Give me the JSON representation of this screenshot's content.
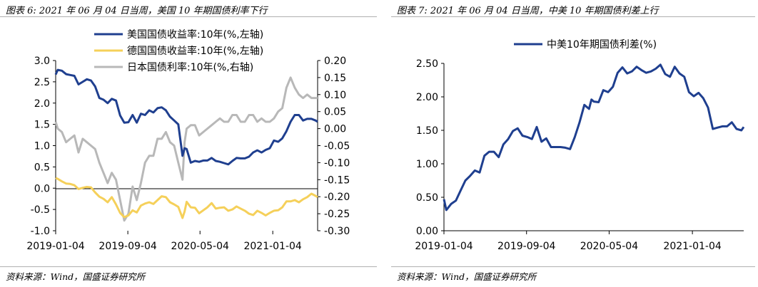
{
  "colors": {
    "us": "#1f3f8f",
    "de": "#f5d05a",
    "jp": "#b8b8b8",
    "spread": "#1f3f8f",
    "axis": "#000000",
    "rule": "#b0b0b0"
  },
  "left": {
    "title": "图表 6:  2021 年 06 月 04 日当周，美国 10 年期国债利率下行",
    "source": "资料来源：Wind，国盛证券研究所",
    "chart_data": {
      "type": "line",
      "x_ticks": [
        "2019-01-04",
        "2019-09-04",
        "2020-05-04",
        "2021-01-04"
      ],
      "y_left": {
        "ticks": [
          "3.0",
          "2.5",
          "2.0",
          "1.5",
          "1.0",
          "0.5",
          "0.0",
          "-0.5",
          "-1.0"
        ],
        "range": [
          -1.0,
          3.0
        ]
      },
      "y_right": {
        "ticks": [
          "0.20",
          "0.15",
          "0.10",
          "0.05",
          "0.00",
          "-0.05",
          "-0.10",
          "-0.15",
          "-0.20",
          "-0.25",
          "-0.30"
        ],
        "range": [
          -0.3,
          0.2
        ]
      },
      "legend_placement": "top-center",
      "series": [
        {
          "name": "美国国债收益率:10年(%,左轴)",
          "axis": "left",
          "x": [
            "2019-01-04",
            "2019-01-11",
            "2019-01-25",
            "2019-02-08",
            "2019-02-22",
            "2019-03-08",
            "2019-03-22",
            "2019-04-05",
            "2019-04-19",
            "2019-05-03",
            "2019-05-17",
            "2019-05-31",
            "2019-06-14",
            "2019-06-28",
            "2019-07-12",
            "2019-07-26",
            "2019-08-09",
            "2019-08-23",
            "2019-09-06",
            "2019-09-20",
            "2019-10-04",
            "2019-10-18",
            "2019-11-01",
            "2019-11-15",
            "2019-11-29",
            "2019-12-13",
            "2019-12-27",
            "2020-01-10",
            "2020-01-24",
            "2020-02-07",
            "2020-02-21",
            "2020-03-06",
            "2020-03-13",
            "2020-03-20",
            "2020-04-03",
            "2020-04-17",
            "2020-05-01",
            "2020-05-15",
            "2020-05-29",
            "2020-06-12",
            "2020-06-26",
            "2020-07-10",
            "2020-07-24",
            "2020-08-07",
            "2020-08-21",
            "2020-09-04",
            "2020-09-18",
            "2020-10-02",
            "2020-10-16",
            "2020-10-30",
            "2020-11-13",
            "2020-11-27",
            "2020-12-11",
            "2020-12-25",
            "2021-01-08",
            "2021-01-22",
            "2021-02-05",
            "2021-02-19",
            "2021-03-05",
            "2021-03-19",
            "2021-04-02",
            "2021-04-16",
            "2021-04-30",
            "2021-05-14",
            "2021-05-28",
            "2021-06-04"
          ],
          "y": [
            2.67,
            2.78,
            2.76,
            2.68,
            2.66,
            2.64,
            2.44,
            2.5,
            2.56,
            2.53,
            2.39,
            2.12,
            2.08,
            2.0,
            2.1,
            2.06,
            1.71,
            1.54,
            1.55,
            1.72,
            1.54,
            1.75,
            1.72,
            1.83,
            1.78,
            1.88,
            1.9,
            1.83,
            1.68,
            1.59,
            1.5,
            0.76,
            0.94,
            0.92,
            0.6,
            0.64,
            0.62,
            0.65,
            0.65,
            0.71,
            0.64,
            0.62,
            0.59,
            0.56,
            0.64,
            0.71,
            0.7,
            0.7,
            0.74,
            0.84,
            0.89,
            0.84,
            0.9,
            0.94,
            1.12,
            1.09,
            1.17,
            1.34,
            1.56,
            1.72,
            1.72,
            1.59,
            1.63,
            1.63,
            1.59,
            1.56
          ]
        },
        {
          "name": "德国国债收益率:10年(%,左轴)",
          "axis": "left",
          "x": [
            "2019-01-04",
            "2019-01-11",
            "2019-01-25",
            "2019-02-08",
            "2019-02-22",
            "2019-03-08",
            "2019-03-22",
            "2019-04-05",
            "2019-04-19",
            "2019-05-03",
            "2019-05-17",
            "2019-05-31",
            "2019-06-14",
            "2019-06-28",
            "2019-07-12",
            "2019-07-26",
            "2019-08-09",
            "2019-08-23",
            "2019-09-06",
            "2019-09-20",
            "2019-10-04",
            "2019-10-18",
            "2019-11-01",
            "2019-11-15",
            "2019-11-29",
            "2019-12-13",
            "2019-12-27",
            "2020-01-10",
            "2020-01-24",
            "2020-02-07",
            "2020-02-21",
            "2020-03-06",
            "2020-03-13",
            "2020-03-20",
            "2020-04-03",
            "2020-04-17",
            "2020-05-01",
            "2020-05-15",
            "2020-05-29",
            "2020-06-12",
            "2020-06-26",
            "2020-07-10",
            "2020-07-24",
            "2020-08-07",
            "2020-08-21",
            "2020-09-04",
            "2020-09-18",
            "2020-10-02",
            "2020-10-16",
            "2020-10-30",
            "2020-11-13",
            "2020-11-27",
            "2020-12-11",
            "2020-12-25",
            "2021-01-08",
            "2021-01-22",
            "2021-02-05",
            "2021-02-19",
            "2021-03-05",
            "2021-03-19",
            "2021-04-02",
            "2021-04-16",
            "2021-04-30",
            "2021-05-14",
            "2021-05-28",
            "2021-06-04"
          ],
          "y": [
            0.24,
            0.22,
            0.16,
            0.11,
            0.1,
            0.07,
            -0.02,
            0.01,
            0.03,
            0.02,
            -0.1,
            -0.2,
            -0.25,
            -0.33,
            -0.21,
            -0.38,
            -0.58,
            -0.68,
            -0.64,
            -0.52,
            -0.57,
            -0.41,
            -0.36,
            -0.33,
            -0.37,
            -0.28,
            -0.19,
            -0.21,
            -0.33,
            -0.38,
            -0.44,
            -0.7,
            -0.55,
            -0.32,
            -0.45,
            -0.46,
            -0.59,
            -0.52,
            -0.45,
            -0.35,
            -0.48,
            -0.46,
            -0.45,
            -0.53,
            -0.5,
            -0.43,
            -0.48,
            -0.53,
            -0.6,
            -0.63,
            -0.53,
            -0.58,
            -0.64,
            -0.58,
            -0.53,
            -0.52,
            -0.45,
            -0.31,
            -0.31,
            -0.28,
            -0.33,
            -0.26,
            -0.21,
            -0.13,
            -0.18,
            -0.21
          ]
        },
        {
          "name": "日本国债利率:10年(%,右轴)",
          "axis": "right",
          "x": [
            "2019-01-04",
            "2019-01-11",
            "2019-01-25",
            "2019-02-08",
            "2019-02-22",
            "2019-03-08",
            "2019-03-22",
            "2019-04-05",
            "2019-04-19",
            "2019-05-03",
            "2019-05-17",
            "2019-05-31",
            "2019-06-14",
            "2019-06-28",
            "2019-07-12",
            "2019-07-26",
            "2019-08-09",
            "2019-08-23",
            "2019-09-06",
            "2019-09-20",
            "2019-10-04",
            "2019-10-18",
            "2019-11-01",
            "2019-11-15",
            "2019-11-29",
            "2019-12-13",
            "2019-12-27",
            "2020-01-10",
            "2020-01-24",
            "2020-02-07",
            "2020-02-21",
            "2020-03-06",
            "2020-03-13",
            "2020-03-20",
            "2020-04-03",
            "2020-04-17",
            "2020-05-01",
            "2020-05-15",
            "2020-05-29",
            "2020-06-12",
            "2020-06-26",
            "2020-07-10",
            "2020-07-24",
            "2020-08-07",
            "2020-08-21",
            "2020-09-04",
            "2020-09-18",
            "2020-10-02",
            "2020-10-16",
            "2020-10-30",
            "2020-11-13",
            "2020-11-27",
            "2020-12-11",
            "2020-12-25",
            "2021-01-08",
            "2021-01-22",
            "2021-02-05",
            "2021-02-19",
            "2021-03-05",
            "2021-03-19",
            "2021-04-02",
            "2021-04-16",
            "2021-04-30",
            "2021-05-14",
            "2021-05-28",
            "2021-06-04"
          ],
          "y": [
            0.02,
            0.0,
            -0.01,
            -0.04,
            -0.03,
            -0.02,
            -0.07,
            -0.03,
            -0.04,
            -0.05,
            -0.06,
            -0.1,
            -0.13,
            -0.16,
            -0.13,
            -0.15,
            -0.21,
            -0.27,
            -0.25,
            -0.17,
            -0.21,
            -0.16,
            -0.1,
            -0.08,
            -0.08,
            -0.03,
            -0.03,
            -0.01,
            -0.04,
            -0.05,
            -0.1,
            -0.15,
            -0.04,
            0.0,
            0.01,
            0.01,
            -0.02,
            -0.01,
            0.0,
            0.01,
            0.02,
            0.03,
            0.02,
            0.02,
            0.04,
            0.04,
            0.02,
            0.02,
            0.04,
            0.04,
            0.02,
            0.03,
            0.02,
            0.02,
            0.03,
            0.05,
            0.06,
            0.12,
            0.15,
            0.12,
            0.1,
            0.09,
            0.1,
            0.09,
            0.09,
            0.09
          ]
        }
      ]
    }
  },
  "right": {
    "title": "图表 7:  2021 年 06 月 04 日当周，中美 10 年期国债利差上行",
    "source": "资料来源：Wind，国盛证券研究所",
    "chart_data": {
      "type": "line",
      "x_ticks": [
        "2019-01-04",
        "2019-09-04",
        "2020-05-04",
        "2021-01-04"
      ],
      "y_left": {
        "ticks": [
          "2.50",
          "2.00",
          "1.50",
          "1.00",
          "0.50",
          "0.00"
        ],
        "range": [
          0.0,
          2.5
        ]
      },
      "legend_placement": "top-center",
      "series": [
        {
          "name": "中美10年期国债利差(%)",
          "x": [
            "2019-01-04",
            "2019-01-11",
            "2019-01-25",
            "2019-02-08",
            "2019-02-22",
            "2019-03-08",
            "2019-03-22",
            "2019-04-05",
            "2019-04-19",
            "2019-05-03",
            "2019-05-17",
            "2019-05-31",
            "2019-06-14",
            "2019-06-28",
            "2019-07-12",
            "2019-07-26",
            "2019-08-09",
            "2019-08-23",
            "2019-09-06",
            "2019-09-20",
            "2019-10-04",
            "2019-10-18",
            "2019-11-01",
            "2019-11-15",
            "2019-11-29",
            "2019-12-13",
            "2019-12-27",
            "2020-01-10",
            "2020-01-24",
            "2020-02-07",
            "2020-02-21",
            "2020-03-06",
            "2020-03-13",
            "2020-03-20",
            "2020-04-03",
            "2020-04-17",
            "2020-05-01",
            "2020-05-15",
            "2020-05-29",
            "2020-06-12",
            "2020-06-26",
            "2020-07-10",
            "2020-07-24",
            "2020-08-07",
            "2020-08-21",
            "2020-09-04",
            "2020-09-18",
            "2020-10-02",
            "2020-10-16",
            "2020-10-30",
            "2020-11-13",
            "2020-11-27",
            "2020-12-11",
            "2020-12-25",
            "2021-01-08",
            "2021-01-22",
            "2021-02-05",
            "2021-02-19",
            "2021-03-05",
            "2021-03-19",
            "2021-04-02",
            "2021-04-16",
            "2021-04-30",
            "2021-05-14",
            "2021-05-28",
            "2021-06-04"
          ],
          "y": [
            0.47,
            0.31,
            0.4,
            0.45,
            0.6,
            0.75,
            0.82,
            0.9,
            0.87,
            1.12,
            1.18,
            1.18,
            1.1,
            1.29,
            1.37,
            1.49,
            1.53,
            1.42,
            1.4,
            1.37,
            1.55,
            1.33,
            1.38,
            1.25,
            1.25,
            1.25,
            1.24,
            1.22,
            1.4,
            1.62,
            1.88,
            1.82,
            1.96,
            1.93,
            1.92,
            2.1,
            2.07,
            2.15,
            2.36,
            2.44,
            2.35,
            2.38,
            2.45,
            2.4,
            2.36,
            2.38,
            2.42,
            2.48,
            2.34,
            2.3,
            2.45,
            2.35,
            2.3,
            2.07,
            2.01,
            2.06,
            1.98,
            1.84,
            1.52,
            1.54,
            1.56,
            1.56,
            1.62,
            1.52,
            1.5,
            1.55
          ]
        }
      ]
    }
  }
}
